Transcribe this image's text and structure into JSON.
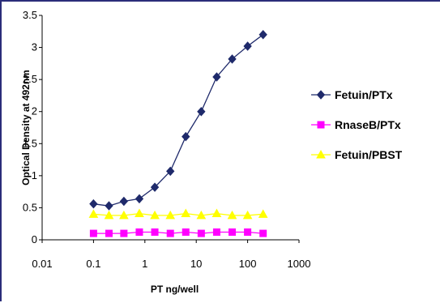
{
  "chart_data": {
    "type": "line",
    "xscale": "log",
    "xlim": [
      0.01,
      1000
    ],
    "ylim": [
      0,
      3.5
    ],
    "xticks": [
      "0.01",
      "0.1",
      "1",
      "10",
      "100",
      "1000"
    ],
    "yticks": [
      "0",
      "0.5",
      "1",
      "1.5",
      "2",
      "2.5",
      "3",
      "3.5"
    ],
    "xlabel": "PT ng/well",
    "ylabel": "Optical Density at 492nm",
    "grid": false,
    "legend_position": "right",
    "x": [
      0.1,
      0.2,
      0.39,
      0.78,
      1.56,
      3.13,
      6.25,
      12.5,
      25,
      50,
      100,
      200
    ],
    "series": [
      {
        "name": "Fetuin/PTx",
        "color": "#1f2a6b",
        "marker": "diamond",
        "values": [
          0.56,
          0.53,
          0.6,
          0.64,
          0.82,
          1.07,
          1.61,
          2.0,
          2.54,
          2.82,
          3.02,
          3.2
        ]
      },
      {
        "name": "RnaseB/PTx",
        "color": "#ff00ff",
        "marker": "square",
        "values": [
          0.1,
          0.1,
          0.1,
          0.12,
          0.12,
          0.1,
          0.12,
          0.1,
          0.12,
          0.12,
          0.12,
          0.1
        ]
      },
      {
        "name": "Fetuin/PBST",
        "color": "#ffff00",
        "marker": "triangle",
        "values": [
          0.4,
          0.38,
          0.38,
          0.41,
          0.38,
          0.38,
          0.41,
          0.38,
          0.41,
          0.38,
          0.38,
          0.4
        ]
      }
    ]
  }
}
